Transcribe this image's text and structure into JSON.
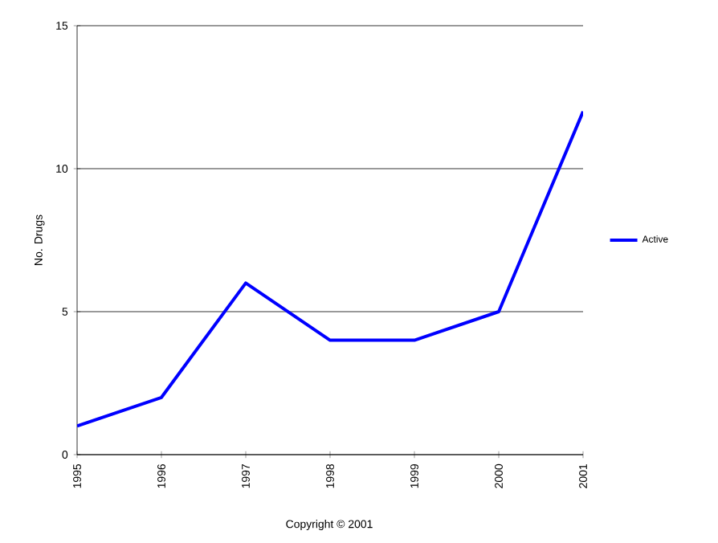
{
  "chart_data": {
    "type": "line",
    "ylabel": "No. Drugs",
    "categories": [
      "1995",
      "1996",
      "1997",
      "1998",
      "1999",
      "2000",
      "2001"
    ],
    "series": [
      {
        "name": "Active",
        "color": "#0000ff",
        "values": [
          1,
          2,
          6,
          4,
          4,
          5,
          12
        ]
      }
    ],
    "ylim": [
      0,
      15
    ],
    "yticks": [
      0,
      5,
      10,
      15
    ],
    "grid": "y",
    "legend": "right",
    "marker": "none",
    "line_style": "solid",
    "annotations": [
      "Copyright © 2001"
    ]
  }
}
